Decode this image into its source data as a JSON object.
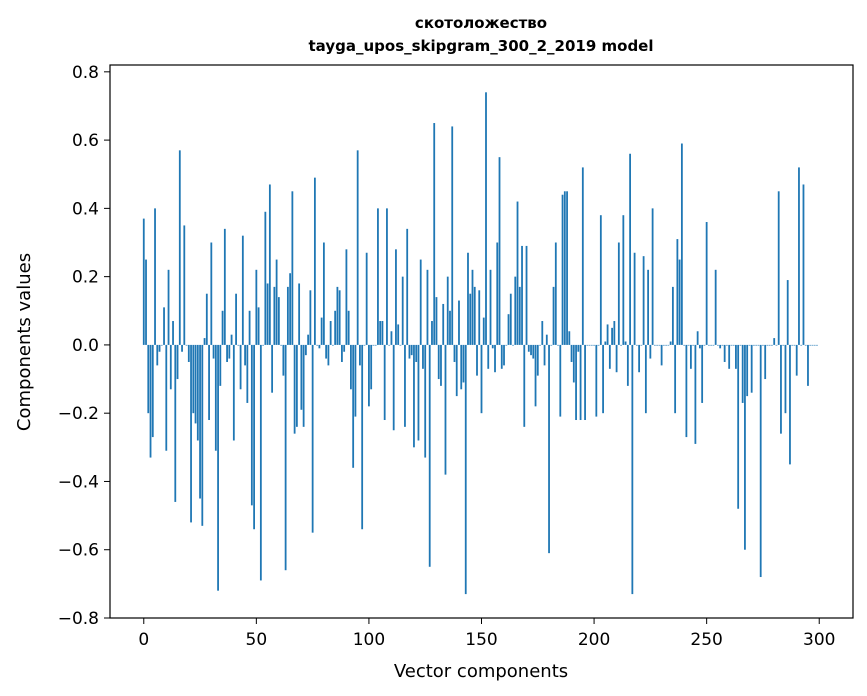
{
  "chart_data": {
    "type": "bar",
    "title_line1": "скотоложество",
    "title_line2": "tayga_upos_skipgram_300_2_2019 model",
    "xlabel": "Vector components",
    "ylabel": "Components values",
    "xlim": [
      -15,
      315
    ],
    "ylim": [
      -0.8,
      0.82
    ],
    "xticks": [
      0,
      50,
      100,
      150,
      200,
      250,
      300
    ],
    "xtick_labels": [
      "0",
      "50",
      "100",
      "150",
      "200",
      "250",
      "300"
    ],
    "yticks": [
      -0.8,
      -0.6,
      -0.4,
      -0.2,
      0.0,
      0.2,
      0.4,
      0.6,
      0.8
    ],
    "ytick_labels": [
      "−0.8",
      "−0.6",
      "−0.4",
      "−0.2",
      "0.0",
      "0.2",
      "0.4",
      "0.6",
      "0.8"
    ],
    "bar_color": "#1f77b4",
    "grid": false,
    "values": [
      0.37,
      0.25,
      -0.2,
      -0.33,
      -0.27,
      0.4,
      -0.06,
      -0.02,
      0.0,
      0.11,
      -0.31,
      0.22,
      -0.13,
      0.07,
      -0.46,
      -0.1,
      0.57,
      -0.02,
      0.35,
      0.0,
      -0.05,
      -0.52,
      -0.2,
      -0.23,
      -0.28,
      -0.45,
      -0.53,
      0.02,
      0.15,
      -0.22,
      0.3,
      -0.04,
      -0.31,
      -0.72,
      -0.12,
      0.1,
      0.34,
      -0.05,
      -0.04,
      0.03,
      -0.28,
      0.15,
      0.0,
      -0.13,
      0.32,
      -0.06,
      -0.17,
      0.1,
      -0.47,
      -0.54,
      0.22,
      0.11,
      -0.69,
      0.0,
      0.39,
      0.18,
      0.47,
      -0.14,
      0.17,
      0.25,
      0.14,
      0.0,
      -0.09,
      -0.66,
      0.17,
      0.21,
      0.45,
      -0.26,
      -0.24,
      0.18,
      -0.19,
      -0.24,
      -0.03,
      0.03,
      0.16,
      -0.55,
      0.49,
      0.0,
      -0.01,
      0.08,
      0.3,
      -0.04,
      -0.06,
      0.07,
      0.0,
      0.1,
      0.17,
      0.16,
      -0.05,
      -0.02,
      0.28,
      0.1,
      -0.13,
      -0.36,
      -0.21,
      0.57,
      -0.06,
      -0.54,
      0.0,
      0.27,
      -0.18,
      -0.13,
      0.0,
      0.0,
      0.4,
      0.07,
      0.07,
      -0.22,
      0.4,
      0.0,
      0.04,
      -0.25,
      0.28,
      0.06,
      0.0,
      0.2,
      -0.24,
      0.34,
      -0.04,
      -0.03,
      -0.3,
      -0.05,
      -0.28,
      0.25,
      -0.07,
      -0.33,
      0.22,
      -0.65,
      0.07,
      0.65,
      0.14,
      -0.1,
      -0.12,
      0.12,
      -0.38,
      0.2,
      0.1,
      0.64,
      -0.05,
      -0.15,
      0.13,
      -0.13,
      -0.11,
      -0.73,
      0.27,
      0.15,
      0.22,
      0.17,
      -0.09,
      0.16,
      -0.2,
      0.08,
      0.74,
      -0.07,
      0.22,
      -0.01,
      -0.08,
      0.3,
      0.55,
      -0.07,
      -0.06,
      0.0,
      0.09,
      0.15,
      0.0,
      0.2,
      0.42,
      0.17,
      0.29,
      -0.24,
      0.29,
      -0.02,
      -0.03,
      -0.04,
      -0.18,
      -0.09,
      0.0,
      0.07,
      -0.06,
      0.03,
      -0.61,
      0.0,
      0.17,
      0.3,
      0.0,
      -0.21,
      0.44,
      0.45,
      0.45,
      0.04,
      -0.05,
      -0.11,
      -0.22,
      -0.02,
      -0.22,
      0.52,
      -0.22,
      0.0,
      0.0,
      0.0,
      0.0,
      -0.21,
      0.0,
      0.38,
      -0.2,
      0.01,
      0.06,
      -0.07,
      0.05,
      0.07,
      -0.08,
      0.3,
      0.0,
      0.38,
      0.01,
      -0.12,
      0.56,
      -0.73,
      0.27,
      0.0,
      -0.08,
      0.0,
      0.26,
      -0.2,
      0.22,
      -0.04,
      0.4,
      0.0,
      0.0,
      0.0,
      -0.06,
      0.0,
      0.0,
      0.0,
      0.01,
      0.17,
      -0.2,
      0.31,
      0.25,
      0.59,
      0.0,
      -0.27,
      0.0,
      -0.07,
      0.0,
      -0.29,
      0.04,
      -0.01,
      -0.17,
      0.0,
      0.36,
      0.0,
      0.0,
      0.0,
      0.22,
      0.0,
      -0.01,
      0.0,
      -0.05,
      0.0,
      -0.07,
      0.0,
      0.0,
      -0.07,
      -0.48,
      0.0,
      -0.17,
      -0.6,
      -0.15,
      0.0,
      -0.14,
      0.0,
      0.0,
      0.0,
      -0.68,
      0.0,
      -0.1,
      0.0,
      0.0,
      0.0,
      0.02,
      0.0,
      0.45,
      -0.26,
      0.0,
      -0.2,
      0.19,
      -0.35,
      0.0,
      0.0,
      -0.09,
      0.52,
      0.0,
      0.47,
      0.0,
      -0.12,
      0.0,
      0.0,
      0.0,
      0.0
    ]
  }
}
